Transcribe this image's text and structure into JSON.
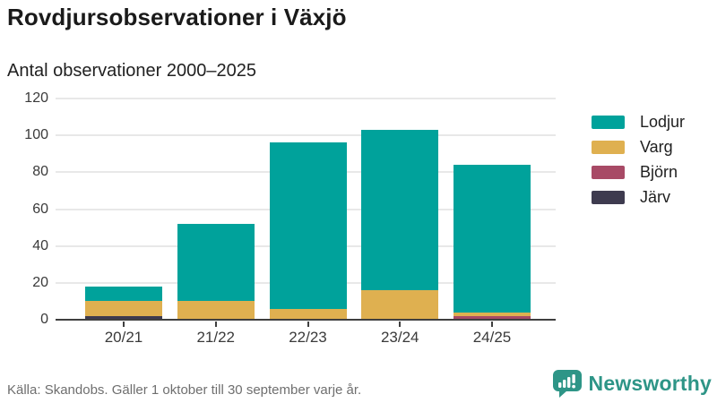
{
  "header": {
    "title": "Rovdjursobservationer i Växjö",
    "subtitle": "Antal observationer 2000–2025"
  },
  "chart_data": {
    "type": "bar",
    "stacked": true,
    "title": "Rovdjursobservationer i Växjö",
    "subtitle": "Antal observationer 2000–2025",
    "categories": [
      "20/21",
      "21/22",
      "22/23",
      "23/24",
      "24/25"
    ],
    "series": [
      {
        "name": "Lodjur",
        "color": "#00A29B",
        "values": [
          8,
          42,
          90,
          87,
          80
        ]
      },
      {
        "name": "Varg",
        "color": "#DFB050",
        "values": [
          8,
          10,
          6,
          16,
          2
        ]
      },
      {
        "name": "Björn",
        "color": "#A84A66",
        "values": [
          0,
          0,
          0,
          0,
          2
        ]
      },
      {
        "name": "Järv",
        "color": "#3E3B4F",
        "values": [
          2,
          0,
          0,
          0,
          0
        ]
      }
    ],
    "stack_order_bottom_to_top": [
      "Järv",
      "Björn",
      "Varg",
      "Lodjur"
    ],
    "totals": [
      18,
      52,
      96,
      103,
      84
    ],
    "ylim": [
      0,
      120
    ],
    "yticks": [
      0,
      20,
      40,
      60,
      80,
      100,
      120
    ],
    "grid": true,
    "legend_position": "right"
  },
  "footer": {
    "source": "Källa: Skandobs. Gäller 1 oktober till 30 september varje år.",
    "brand_name": "Newsworthy",
    "brand_color": "#2E9587"
  }
}
